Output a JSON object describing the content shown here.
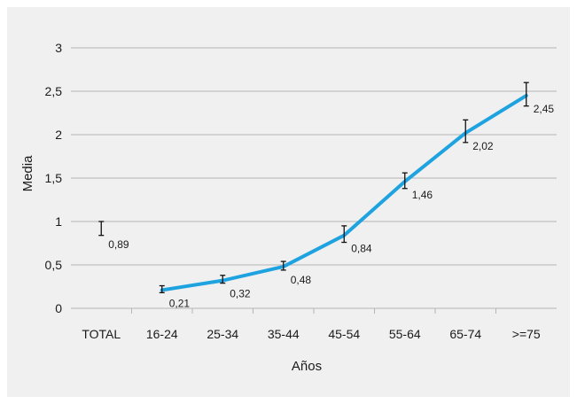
{
  "chart_data": {
    "type": "line",
    "title": "",
    "xlabel": "Años",
    "ylabel": "Media",
    "ylim": [
      0,
      3
    ],
    "yticks": [
      "0",
      "0,5",
      "1",
      "1,5",
      "2",
      "2,5",
      "3"
    ],
    "ytick_values": [
      0,
      0.5,
      1,
      1.5,
      2,
      2.5,
      3
    ],
    "grid": true,
    "categories": [
      "TOTAL",
      "16-24",
      "25-34",
      "35-44",
      "45-54",
      "55-64",
      "65-74",
      ">=75"
    ],
    "series": [
      {
        "values": [
          0.89,
          0.21,
          0.32,
          0.48,
          0.84,
          1.46,
          2.02,
          2.45
        ],
        "labels": [
          "0,89",
          "0,21",
          "0,32",
          "0,48",
          "0,84",
          "1,46",
          "2,02",
          "2,45"
        ],
        "connected_from_index": 1,
        "error_low": [
          0.84,
          0.18,
          0.29,
          0.44,
          0.76,
          1.38,
          1.91,
          2.33
        ],
        "error_high": [
          1.0,
          0.26,
          0.38,
          0.54,
          0.95,
          1.56,
          2.17,
          2.6
        ],
        "color": "#1ea3e0"
      }
    ],
    "colors": {
      "background": "#f0f0f0",
      "grid": "#b5b5b5",
      "line": "#1ea3e0",
      "error_bar": "#111111"
    }
  }
}
